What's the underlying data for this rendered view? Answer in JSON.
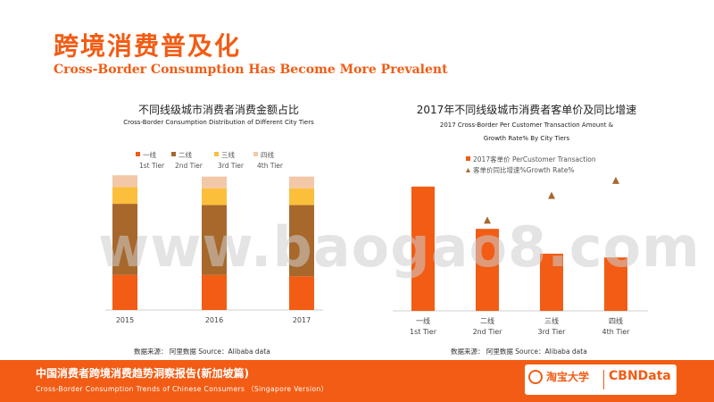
{
  "header": {
    "title_cn": "跨境消费普及化",
    "title_en": "Cross-Border Consumption Has Become More Prevalent"
  },
  "chart_data": [
    {
      "type": "bar",
      "stacked": true,
      "title": "不同线级城市消费者消费金额占比",
      "subtitle": "Cross-Border Consumption Distribution of Different City Tiers",
      "categories": [
        "2015",
        "2016",
        "2017"
      ],
      "series": [
        {
          "name": "一线",
          "name_en": "1st Tier",
          "color": "#f25c14",
          "values": [
            27,
            27,
            26
          ]
        },
        {
          "name": "二线",
          "name_en": "2nd Tier",
          "color": "#a8682c",
          "values": [
            55,
            54,
            55
          ]
        },
        {
          "name": "三线",
          "name_en": "3rd Tier",
          "color": "#fbbf3c",
          "values": [
            13,
            13,
            13
          ]
        },
        {
          "name": "四线",
          "name_en": "4th Tier",
          "color": "#f3c8a8",
          "values": [
            9,
            9,
            9
          ]
        }
      ],
      "ylim": [
        0,
        100
      ],
      "grid": false,
      "legend": "top",
      "source": "数据来源： 阿里数据  Source：Alibaba data"
    },
    {
      "type": "bar",
      "title": "2017年不同线级城市消费者客单价及同比增速",
      "subtitle_line1": "2017 Cross-Border Per Customer Transaction Amount &",
      "subtitle_line2": "Growth Rate% By City Tiers",
      "categories": [
        "一线",
        "二线",
        "三线",
        "四线"
      ],
      "categories_en": [
        "1st Tier",
        "2nd Tier",
        "3rd Tier",
        "4th Tier"
      ],
      "series": [
        {
          "name": "2017客单价 PerCustomer Transaction",
          "color": "#f25c14",
          "type": "bar",
          "values": [
            100,
            66,
            46,
            43
          ]
        },
        {
          "name": "客单价同比增速%Growth Rate%",
          "color": "#a8682c",
          "type": "scatter",
          "values": [
            null,
            73,
            93,
            105
          ]
        }
      ],
      "ylim": [
        0,
        115
      ],
      "grid": false,
      "legend": "top-left",
      "source": "数据来源： 阿里数据  Source：Alibaba data"
    }
  ],
  "watermark": "www.baogao8.com",
  "footer": {
    "title_cn": "中国消费者跨境消费趋势洞察报告(新加坡篇)",
    "title_en": "Cross-Border  Consumption  Trends  of Chinese  Consumers （Singapore  Version）",
    "logo_taobao": "淘宝大学",
    "logo_cbn": "CBNData"
  }
}
